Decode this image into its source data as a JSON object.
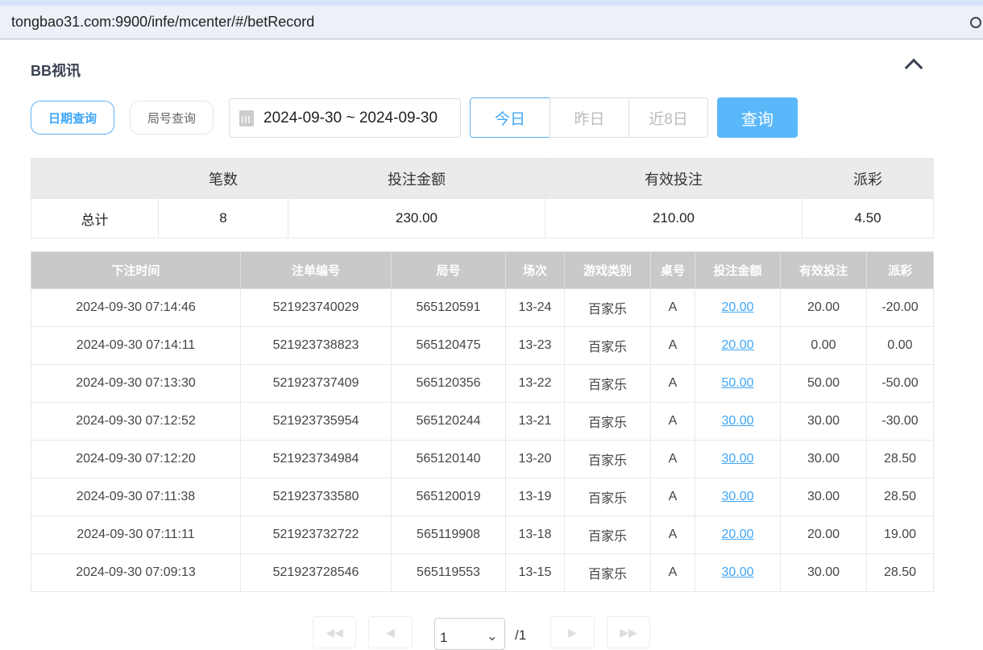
{
  "browser": {
    "url": "tongbao31.com:9900/infe/mcenter/#/betRecord"
  },
  "header": {
    "title": "BB视讯"
  },
  "filters": {
    "date_query": "日期查询",
    "round_query": "局号查询",
    "date_range": "2024-09-30 ~ 2024-09-30",
    "today": "今日",
    "yesterday": "昨日",
    "last8": "近8日",
    "search": "查询"
  },
  "summary": {
    "headers": [
      "",
      "笔数",
      "投注金额",
      "有效投注",
      "派彩"
    ],
    "row": [
      "总计",
      "8",
      "230.00",
      "210.00",
      "4.50"
    ]
  },
  "bets": {
    "headers": [
      "下注时间",
      "注单编号",
      "局号",
      "场次",
      "游戏类别",
      "桌号",
      "投注金额",
      "有效投注",
      "派彩"
    ],
    "rows": [
      [
        "2024-09-30 07:14:46",
        "521923740029",
        "565120591",
        "13-24",
        "百家乐",
        "A",
        "20.00",
        "20.00",
        "-20.00"
      ],
      [
        "2024-09-30 07:14:11",
        "521923738823",
        "565120475",
        "13-23",
        "百家乐",
        "A",
        "20.00",
        "0.00",
        "0.00"
      ],
      [
        "2024-09-30 07:13:30",
        "521923737409",
        "565120356",
        "13-22",
        "百家乐",
        "A",
        "50.00",
        "50.00",
        "-50.00"
      ],
      [
        "2024-09-30 07:12:52",
        "521923735954",
        "565120244",
        "13-21",
        "百家乐",
        "A",
        "30.00",
        "30.00",
        "-30.00"
      ],
      [
        "2024-09-30 07:12:20",
        "521923734984",
        "565120140",
        "13-20",
        "百家乐",
        "A",
        "30.00",
        "30.00",
        "28.50"
      ],
      [
        "2024-09-30 07:11:38",
        "521923733580",
        "565120019",
        "13-19",
        "百家乐",
        "A",
        "30.00",
        "30.00",
        "28.50"
      ],
      [
        "2024-09-30 07:11:11",
        "521923732722",
        "565119908",
        "13-18",
        "百家乐",
        "A",
        "20.00",
        "20.00",
        "19.00"
      ],
      [
        "2024-09-30 07:09:13",
        "521923728546",
        "565119553",
        "13-15",
        "百家乐",
        "A",
        "30.00",
        "30.00",
        "28.50"
      ]
    ]
  },
  "pagination": {
    "page": "1",
    "total": "/1"
  },
  "colors": {
    "accent": "#3fa6f6",
    "negative": "#f0405a"
  }
}
